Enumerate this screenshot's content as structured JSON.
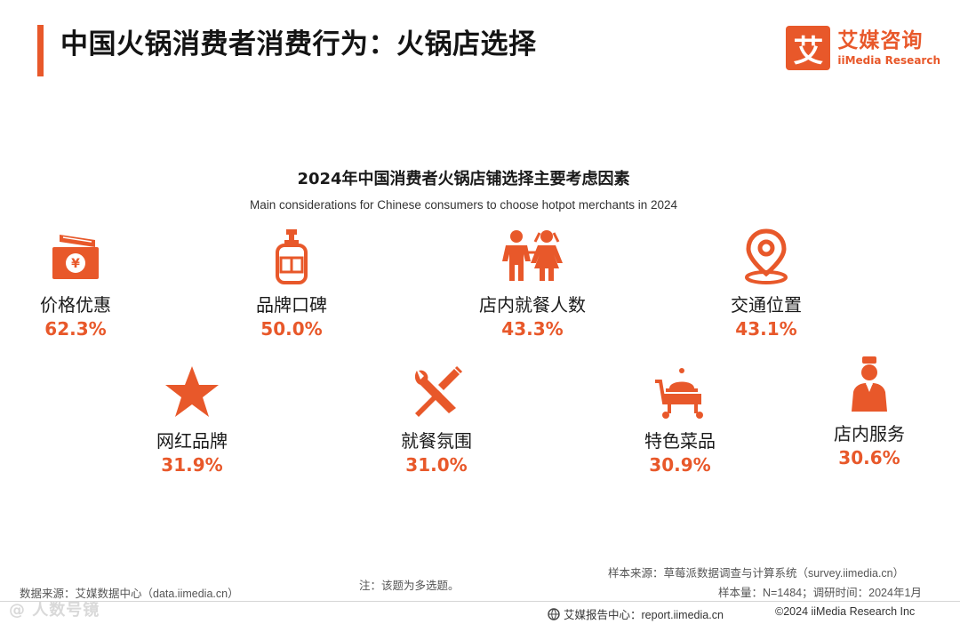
{
  "header": {
    "title": "中国火锅消费者消费行为：火锅店选择",
    "brand_mark": "艾",
    "brand_cn": "艾媒咨询",
    "brand_en": "iiMedia Research"
  },
  "chart": {
    "title": "2024年中国消费者火锅店铺选择主要考虑因素",
    "subtitle": "Main considerations for Chinese consumers to choose hotpot merchants in 2024"
  },
  "chart_data": {
    "type": "table",
    "title": "2024年中国消费者火锅店铺选择主要考虑因素",
    "subtitle": "Main considerations for Chinese consumers to choose hotpot merchants in 2024",
    "categories": [
      "价格优惠",
      "品牌口碑",
      "店内就餐人数",
      "交通位置",
      "网红品牌",
      "就餐氛围",
      "特色菜品",
      "店内服务"
    ],
    "values": [
      62.3,
      50.0,
      43.3,
      43.1,
      31.9,
      31.0,
      30.9,
      30.6
    ],
    "unit": "%"
  },
  "factors": [
    {
      "label": "价格优惠",
      "pct": "62.3%",
      "icon": "wallet-yuan-icon"
    },
    {
      "label": "品牌口碑",
      "pct": "50.0%",
      "icon": "bottle-icon"
    },
    {
      "label": "店内就餐人数",
      "pct": "43.3%",
      "icon": "people-icon"
    },
    {
      "label": "交通位置",
      "pct": "43.1%",
      "icon": "location-pin-icon"
    },
    {
      "label": "网红品牌",
      "pct": "31.9%",
      "icon": "star-icon"
    },
    {
      "label": "就餐氛围",
      "pct": "31.0%",
      "icon": "tools-icon"
    },
    {
      "label": "特色菜品",
      "pct": "30.9%",
      "icon": "food-cart-icon"
    },
    {
      "label": "店内服务",
      "pct": "30.6%",
      "icon": "waiter-icon"
    }
  ],
  "footer": {
    "sample_source": "样本来源：草莓派数据调查与计算系统（survey.iimedia.cn）",
    "sample_info": "样本量：N=1484；调研时间：2024年1月",
    "note": "注：该题为多选题。",
    "data_source": "数据来源：艾媒数据中心（data.iimedia.cn）",
    "report_center": "艾媒报告中心：report.iimedia.cn",
    "copyright": "©2024  iiMedia Research  Inc",
    "watermark": "@ 人数号镜"
  },
  "colors": {
    "accent": "#e8582a",
    "text": "#1a1a1a"
  }
}
